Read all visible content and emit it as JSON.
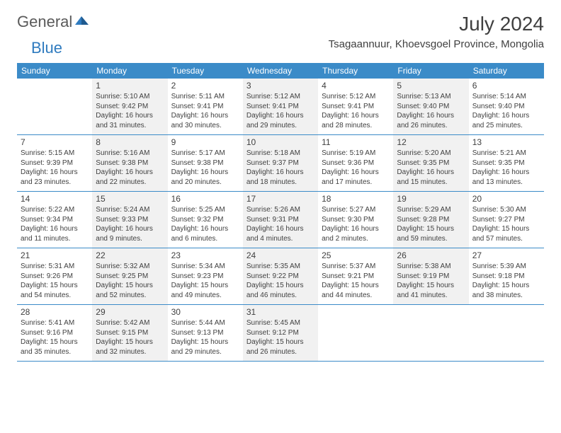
{
  "logo": {
    "general": "General",
    "blue": "Blue"
  },
  "title": "July 2024",
  "location": "Tsagaannuur, Khoevsgoel Province, Mongolia",
  "colors": {
    "header_bg": "#3b8bc8",
    "header_text": "#ffffff",
    "text": "#404040",
    "shade_bg": "#f1f1f1",
    "logo_gray": "#5a5a5a",
    "logo_blue": "#2f7bbf",
    "page_bg": "#ffffff"
  },
  "days_of_week": [
    "Sunday",
    "Monday",
    "Tuesday",
    "Wednesday",
    "Thursday",
    "Friday",
    "Saturday"
  ],
  "weeks": [
    [
      {
        "num": "",
        "sunrise": "",
        "sunset": "",
        "daylight": "",
        "shade": false
      },
      {
        "num": "1",
        "sunrise": "Sunrise: 5:10 AM",
        "sunset": "Sunset: 9:42 PM",
        "daylight": "Daylight: 16 hours and 31 minutes.",
        "shade": true
      },
      {
        "num": "2",
        "sunrise": "Sunrise: 5:11 AM",
        "sunset": "Sunset: 9:41 PM",
        "daylight": "Daylight: 16 hours and 30 minutes.",
        "shade": false
      },
      {
        "num": "3",
        "sunrise": "Sunrise: 5:12 AM",
        "sunset": "Sunset: 9:41 PM",
        "daylight": "Daylight: 16 hours and 29 minutes.",
        "shade": true
      },
      {
        "num": "4",
        "sunrise": "Sunrise: 5:12 AM",
        "sunset": "Sunset: 9:41 PM",
        "daylight": "Daylight: 16 hours and 28 minutes.",
        "shade": false
      },
      {
        "num": "5",
        "sunrise": "Sunrise: 5:13 AM",
        "sunset": "Sunset: 9:40 PM",
        "daylight": "Daylight: 16 hours and 26 minutes.",
        "shade": true
      },
      {
        "num": "6",
        "sunrise": "Sunrise: 5:14 AM",
        "sunset": "Sunset: 9:40 PM",
        "daylight": "Daylight: 16 hours and 25 minutes.",
        "shade": false
      }
    ],
    [
      {
        "num": "7",
        "sunrise": "Sunrise: 5:15 AM",
        "sunset": "Sunset: 9:39 PM",
        "daylight": "Daylight: 16 hours and 23 minutes.",
        "shade": false
      },
      {
        "num": "8",
        "sunrise": "Sunrise: 5:16 AM",
        "sunset": "Sunset: 9:38 PM",
        "daylight": "Daylight: 16 hours and 22 minutes.",
        "shade": true
      },
      {
        "num": "9",
        "sunrise": "Sunrise: 5:17 AM",
        "sunset": "Sunset: 9:38 PM",
        "daylight": "Daylight: 16 hours and 20 minutes.",
        "shade": false
      },
      {
        "num": "10",
        "sunrise": "Sunrise: 5:18 AM",
        "sunset": "Sunset: 9:37 PM",
        "daylight": "Daylight: 16 hours and 18 minutes.",
        "shade": true
      },
      {
        "num": "11",
        "sunrise": "Sunrise: 5:19 AM",
        "sunset": "Sunset: 9:36 PM",
        "daylight": "Daylight: 16 hours and 17 minutes.",
        "shade": false
      },
      {
        "num": "12",
        "sunrise": "Sunrise: 5:20 AM",
        "sunset": "Sunset: 9:35 PM",
        "daylight": "Daylight: 16 hours and 15 minutes.",
        "shade": true
      },
      {
        "num": "13",
        "sunrise": "Sunrise: 5:21 AM",
        "sunset": "Sunset: 9:35 PM",
        "daylight": "Daylight: 16 hours and 13 minutes.",
        "shade": false
      }
    ],
    [
      {
        "num": "14",
        "sunrise": "Sunrise: 5:22 AM",
        "sunset": "Sunset: 9:34 PM",
        "daylight": "Daylight: 16 hours and 11 minutes.",
        "shade": false
      },
      {
        "num": "15",
        "sunrise": "Sunrise: 5:24 AM",
        "sunset": "Sunset: 9:33 PM",
        "daylight": "Daylight: 16 hours and 9 minutes.",
        "shade": true
      },
      {
        "num": "16",
        "sunrise": "Sunrise: 5:25 AM",
        "sunset": "Sunset: 9:32 PM",
        "daylight": "Daylight: 16 hours and 6 minutes.",
        "shade": false
      },
      {
        "num": "17",
        "sunrise": "Sunrise: 5:26 AM",
        "sunset": "Sunset: 9:31 PM",
        "daylight": "Daylight: 16 hours and 4 minutes.",
        "shade": true
      },
      {
        "num": "18",
        "sunrise": "Sunrise: 5:27 AM",
        "sunset": "Sunset: 9:30 PM",
        "daylight": "Daylight: 16 hours and 2 minutes.",
        "shade": false
      },
      {
        "num": "19",
        "sunrise": "Sunrise: 5:29 AM",
        "sunset": "Sunset: 9:28 PM",
        "daylight": "Daylight: 15 hours and 59 minutes.",
        "shade": true
      },
      {
        "num": "20",
        "sunrise": "Sunrise: 5:30 AM",
        "sunset": "Sunset: 9:27 PM",
        "daylight": "Daylight: 15 hours and 57 minutes.",
        "shade": false
      }
    ],
    [
      {
        "num": "21",
        "sunrise": "Sunrise: 5:31 AM",
        "sunset": "Sunset: 9:26 PM",
        "daylight": "Daylight: 15 hours and 54 minutes.",
        "shade": false
      },
      {
        "num": "22",
        "sunrise": "Sunrise: 5:32 AM",
        "sunset": "Sunset: 9:25 PM",
        "daylight": "Daylight: 15 hours and 52 minutes.",
        "shade": true
      },
      {
        "num": "23",
        "sunrise": "Sunrise: 5:34 AM",
        "sunset": "Sunset: 9:23 PM",
        "daylight": "Daylight: 15 hours and 49 minutes.",
        "shade": false
      },
      {
        "num": "24",
        "sunrise": "Sunrise: 5:35 AM",
        "sunset": "Sunset: 9:22 PM",
        "daylight": "Daylight: 15 hours and 46 minutes.",
        "shade": true
      },
      {
        "num": "25",
        "sunrise": "Sunrise: 5:37 AM",
        "sunset": "Sunset: 9:21 PM",
        "daylight": "Daylight: 15 hours and 44 minutes.",
        "shade": false
      },
      {
        "num": "26",
        "sunrise": "Sunrise: 5:38 AM",
        "sunset": "Sunset: 9:19 PM",
        "daylight": "Daylight: 15 hours and 41 minutes.",
        "shade": true
      },
      {
        "num": "27",
        "sunrise": "Sunrise: 5:39 AM",
        "sunset": "Sunset: 9:18 PM",
        "daylight": "Daylight: 15 hours and 38 minutes.",
        "shade": false
      }
    ],
    [
      {
        "num": "28",
        "sunrise": "Sunrise: 5:41 AM",
        "sunset": "Sunset: 9:16 PM",
        "daylight": "Daylight: 15 hours and 35 minutes.",
        "shade": false
      },
      {
        "num": "29",
        "sunrise": "Sunrise: 5:42 AM",
        "sunset": "Sunset: 9:15 PM",
        "daylight": "Daylight: 15 hours and 32 minutes.",
        "shade": true
      },
      {
        "num": "30",
        "sunrise": "Sunrise: 5:44 AM",
        "sunset": "Sunset: 9:13 PM",
        "daylight": "Daylight: 15 hours and 29 minutes.",
        "shade": false
      },
      {
        "num": "31",
        "sunrise": "Sunrise: 5:45 AM",
        "sunset": "Sunset: 9:12 PM",
        "daylight": "Daylight: 15 hours and 26 minutes.",
        "shade": true
      },
      {
        "num": "",
        "sunrise": "",
        "sunset": "",
        "daylight": "",
        "shade": false
      },
      {
        "num": "",
        "sunrise": "",
        "sunset": "",
        "daylight": "",
        "shade": false
      },
      {
        "num": "",
        "sunrise": "",
        "sunset": "",
        "daylight": "",
        "shade": false
      }
    ]
  ]
}
